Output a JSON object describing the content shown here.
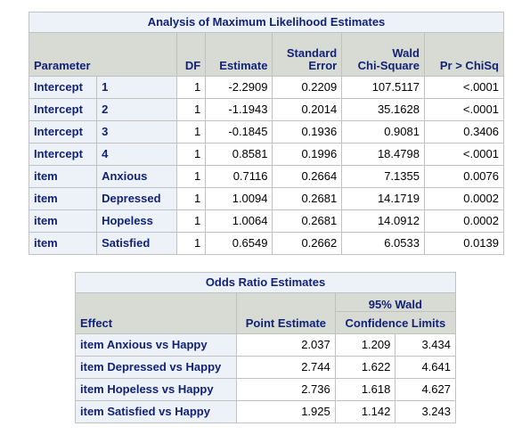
{
  "mle": {
    "title": "Analysis of Maximum Likelihood Estimates",
    "headers": {
      "parameter": "Parameter",
      "df": "DF",
      "estimate": "Estimate",
      "stderr_line1": "Standard",
      "stderr_line2": "Error",
      "wald_line1": "Wald",
      "wald_line2": "Chi-Square",
      "p": "Pr > ChiSq"
    },
    "rows": [
      {
        "param": "Intercept",
        "level": "1",
        "df": "1",
        "est": "-2.2909",
        "se": "0.2209",
        "chisq": "107.5117",
        "p": "<.0001"
      },
      {
        "param": "Intercept",
        "level": "2",
        "df": "1",
        "est": "-1.1943",
        "se": "0.2014",
        "chisq": "35.1628",
        "p": "<.0001"
      },
      {
        "param": "Intercept",
        "level": "3",
        "df": "1",
        "est": "-0.1845",
        "se": "0.1936",
        "chisq": "0.9081",
        "p": "0.3406"
      },
      {
        "param": "Intercept",
        "level": "4",
        "df": "1",
        "est": "0.8581",
        "se": "0.1996",
        "chisq": "18.4798",
        "p": "<.0001"
      },
      {
        "param": "item",
        "level": "Anxious",
        "df": "1",
        "est": "0.7116",
        "se": "0.2664",
        "chisq": "7.1355",
        "p": "0.0076"
      },
      {
        "param": "item",
        "level": "Depressed",
        "df": "1",
        "est": "1.0094",
        "se": "0.2681",
        "chisq": "14.1719",
        "p": "0.0002"
      },
      {
        "param": "item",
        "level": "Hopeless",
        "df": "1",
        "est": "1.0064",
        "se": "0.2681",
        "chisq": "14.0912",
        "p": "0.0002"
      },
      {
        "param": "item",
        "level": "Satisfied",
        "df": "1",
        "est": "0.6549",
        "se": "0.2662",
        "chisq": "6.0533",
        "p": "0.0139"
      }
    ]
  },
  "odds": {
    "title": "Odds Ratio Estimates",
    "headers": {
      "effect": "Effect",
      "point": "Point Estimate",
      "ci_line1": "95% Wald",
      "ci_line2": "Confidence Limits"
    },
    "rows": [
      {
        "effect": "item Anxious vs Happy",
        "point": "2.037",
        "lower": "1.209",
        "upper": "3.434"
      },
      {
        "effect": "item Depressed vs Happy",
        "point": "2.744",
        "lower": "1.622",
        "upper": "4.641"
      },
      {
        "effect": "item Hopeless vs Happy",
        "point": "2.736",
        "lower": "1.618",
        "upper": "4.627"
      },
      {
        "effect": "item Satisfied vs Happy",
        "point": "1.925",
        "lower": "1.142",
        "upper": "3.243"
      }
    ]
  },
  "colors": {
    "header_text": "#112277",
    "header_bg": "#d8dbd3",
    "caption_bg": "#edf2f9",
    "border": "#c1c1c1"
  }
}
